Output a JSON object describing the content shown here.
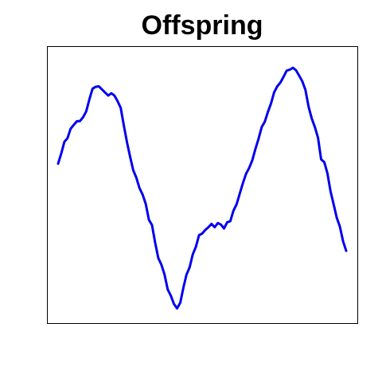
{
  "chart_data": {
    "type": "line",
    "title": "Offspring",
    "xlabel": "",
    "ylabel": "",
    "axes_visible": false,
    "grid": false,
    "legend": "none",
    "xlim": [
      0,
      100
    ],
    "ylim": [
      0,
      100
    ],
    "color": "#0000ee",
    "series": [
      {
        "values": [
          [
            0,
            58.3
          ],
          [
            1,
            62.2
          ],
          [
            2,
            66.8
          ],
          [
            3,
            68.2
          ],
          [
            4,
            71.9
          ],
          [
            5,
            73.4
          ],
          [
            6,
            74.8
          ],
          [
            7,
            74.9
          ],
          [
            8,
            76.4
          ],
          [
            9,
            78.7
          ],
          [
            10,
            83.3
          ],
          [
            11,
            87.5
          ],
          [
            12,
            88.2
          ],
          [
            13,
            88.4
          ],
          [
            14,
            87.2
          ],
          [
            15,
            86.0
          ],
          [
            16,
            84.8
          ],
          [
            17,
            85.7
          ],
          [
            18,
            84.8
          ],
          [
            19,
            82.6
          ],
          [
            20,
            80.0
          ],
          [
            21,
            73.2
          ],
          [
            22,
            66.6
          ],
          [
            23,
            61.0
          ],
          [
            24,
            55.8
          ],
          [
            25,
            52.8
          ],
          [
            26,
            48.8
          ],
          [
            27,
            46.3
          ],
          [
            28,
            42.6
          ],
          [
            29,
            36.5
          ],
          [
            30,
            34.4
          ],
          [
            31,
            27.5
          ],
          [
            32,
            21.6
          ],
          [
            33,
            19.0
          ],
          [
            34,
            15.1
          ],
          [
            35,
            9.4
          ],
          [
            36,
            6.9
          ],
          [
            37,
            3.7
          ],
          [
            38,
            2.0
          ],
          [
            39,
            4.2
          ],
          [
            40,
            10.0
          ],
          [
            41,
            15.1
          ],
          [
            42,
            18.0
          ],
          [
            43,
            23.0
          ],
          [
            44,
            25.9
          ],
          [
            45,
            30.5
          ],
          [
            46,
            31.1
          ],
          [
            47,
            32.5
          ],
          [
            48,
            33.6
          ],
          [
            49,
            34.9
          ],
          [
            50,
            33.6
          ],
          [
            51,
            35.2
          ],
          [
            52,
            34.6
          ],
          [
            53,
            33.1
          ],
          [
            54,
            35.5
          ],
          [
            55,
            35.9
          ],
          [
            56,
            40.0
          ],
          [
            57,
            42.5
          ],
          [
            58,
            46.6
          ],
          [
            59,
            50.7
          ],
          [
            60,
            54.3
          ],
          [
            61,
            56.6
          ],
          [
            62,
            59.6
          ],
          [
            63,
            64.0
          ],
          [
            64,
            67.9
          ],
          [
            65,
            72.5
          ],
          [
            66,
            74.6
          ],
          [
            67,
            78.4
          ],
          [
            68,
            81.8
          ],
          [
            69,
            86.1
          ],
          [
            70,
            88.4
          ],
          [
            71,
            89.9
          ],
          [
            72,
            92.1
          ],
          [
            73,
            94.5
          ],
          [
            74,
            94.9
          ],
          [
            75,
            95.6
          ],
          [
            76,
            94.6
          ],
          [
            77,
            92.5
          ],
          [
            78,
            90.3
          ],
          [
            79,
            87.0
          ],
          [
            80,
            80.4
          ],
          [
            81,
            75.9
          ],
          [
            82,
            72.5
          ],
          [
            83,
            68.4
          ],
          [
            84,
            60.0
          ],
          [
            85,
            58.9
          ],
          [
            86,
            54.6
          ],
          [
            87,
            47.6
          ],
          [
            88,
            42.4
          ],
          [
            89,
            37.2
          ],
          [
            90,
            33.8
          ],
          [
            91,
            28.1
          ],
          [
            92,
            24.4
          ]
        ]
      }
    ]
  }
}
